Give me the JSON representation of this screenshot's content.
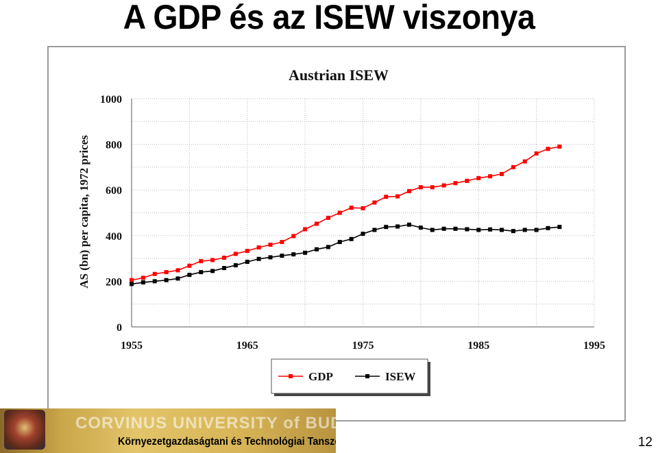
{
  "slide": {
    "title": "A GDP és az ISEW viszonya",
    "page_number": "12"
  },
  "footer": {
    "university": "CORVINUS UNIVERSITY of BUDAPEST",
    "department": "Környezetgazdaságtani és Technológiai Tanszék"
  },
  "chart_data": {
    "type": "line",
    "title": "Austrian ISEW",
    "ylabel": "AS (bn) per capita, 1972 prices",
    "xlabel": "",
    "xlim": [
      1955,
      1995
    ],
    "ylim": [
      0,
      1000
    ],
    "x_ticks": [
      1955,
      1965,
      1975,
      1985,
      1995
    ],
    "y_ticks": [
      0,
      200,
      400,
      600,
      800,
      1000
    ],
    "grid": true,
    "legend_position": "bottom-center",
    "series": [
      {
        "name": "GDP",
        "color": "#ff0000",
        "x": [
          1955,
          1956,
          1957,
          1958,
          1959,
          1960,
          1961,
          1962,
          1963,
          1964,
          1965,
          1966,
          1967,
          1968,
          1969,
          1970,
          1971,
          1972,
          1973,
          1974,
          1975,
          1976,
          1977,
          1978,
          1979,
          1980,
          1981,
          1982,
          1983,
          1984,
          1985,
          1986,
          1987,
          1988,
          1989,
          1990,
          1991,
          1992
        ],
        "values": [
          205,
          215,
          232,
          240,
          248,
          268,
          288,
          293,
          303,
          320,
          333,
          348,
          360,
          372,
          398,
          428,
          452,
          478,
          500,
          522,
          520,
          545,
          570,
          572,
          595,
          612,
          612,
          620,
          630,
          640,
          652,
          660,
          670,
          700,
          725,
          760,
          780,
          790
        ]
      },
      {
        "name": "ISEW",
        "color": "#000000",
        "x": [
          1955,
          1956,
          1957,
          1958,
          1959,
          1960,
          1961,
          1962,
          1963,
          1964,
          1965,
          1966,
          1967,
          1968,
          1969,
          1970,
          1971,
          1972,
          1973,
          1974,
          1975,
          1976,
          1977,
          1978,
          1979,
          1980,
          1981,
          1982,
          1983,
          1984,
          1985,
          1986,
          1987,
          1988,
          1989,
          1990,
          1991,
          1992
        ],
        "values": [
          188,
          195,
          200,
          205,
          212,
          228,
          240,
          245,
          258,
          270,
          285,
          298,
          305,
          312,
          318,
          325,
          340,
          350,
          372,
          385,
          408,
          425,
          438,
          440,
          448,
          435,
          425,
          430,
          430,
          428,
          425,
          427,
          425,
          420,
          425,
          425,
          433,
          438
        ]
      }
    ]
  }
}
